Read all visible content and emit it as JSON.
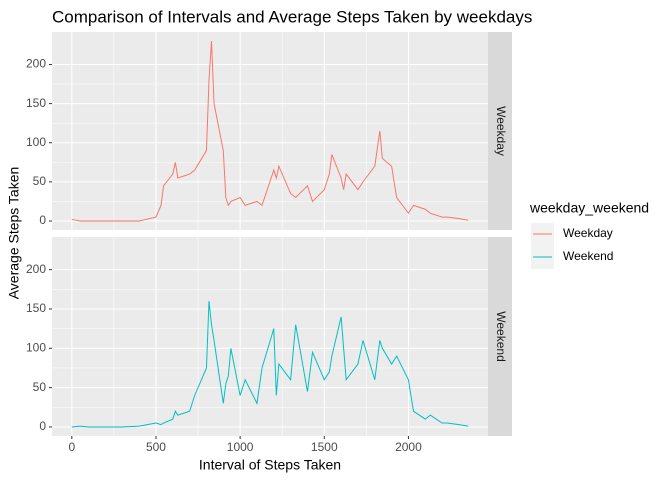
{
  "chart_data": {
    "type": "line",
    "title": "Comparison of Intervals and Average Steps Taken by weekdays",
    "xlabel": "Interval of Steps Taken",
    "ylabel": "Average Steps Taken",
    "legend_title": "weekday_weekend",
    "x": [
      0,
      50,
      100,
      200,
      300,
      400,
      500,
      530,
      545,
      600,
      615,
      630,
      700,
      730,
      800,
      815,
      830,
      845,
      900,
      915,
      930,
      945,
      1000,
      1030,
      1100,
      1130,
      1200,
      1215,
      1230,
      1300,
      1330,
      1400,
      1430,
      1500,
      1530,
      1545,
      1600,
      1615,
      1630,
      1700,
      1730,
      1800,
      1830,
      1845,
      1900,
      1930,
      2000,
      2030,
      2100,
      2130,
      2200,
      2230,
      2300,
      2355
    ],
    "series": [
      {
        "name": "Weekday",
        "color": "#f8766d",
        "values": [
          2,
          0,
          0,
          0,
          0,
          0,
          5,
          20,
          45,
          60,
          75,
          55,
          60,
          65,
          90,
          180,
          230,
          150,
          90,
          30,
          20,
          25,
          30,
          20,
          25,
          20,
          65,
          55,
          70,
          35,
          30,
          45,
          25,
          40,
          60,
          85,
          55,
          40,
          60,
          40,
          50,
          70,
          115,
          80,
          70,
          30,
          10,
          20,
          15,
          10,
          5,
          5,
          3,
          1
        ]
      },
      {
        "name": "Weekend",
        "color": "#00bfc4",
        "values": [
          0,
          1,
          0,
          0,
          0,
          1,
          5,
          3,
          5,
          10,
          20,
          15,
          20,
          40,
          75,
          160,
          130,
          110,
          30,
          55,
          65,
          100,
          40,
          60,
          30,
          75,
          125,
          40,
          80,
          60,
          130,
          45,
          95,
          60,
          70,
          90,
          140,
          100,
          60,
          80,
          110,
          60,
          110,
          100,
          80,
          90,
          60,
          20,
          10,
          15,
          5,
          5,
          3,
          1
        ]
      }
    ],
    "xlim": [
      -117.75,
      2472.75
    ],
    "xticks": [
      0,
      500,
      1000,
      1500,
      2000
    ],
    "ylim": [
      -11.5,
      241.5
    ],
    "yticks": [
      0,
      50,
      100,
      150,
      200
    ],
    "grid": true
  }
}
